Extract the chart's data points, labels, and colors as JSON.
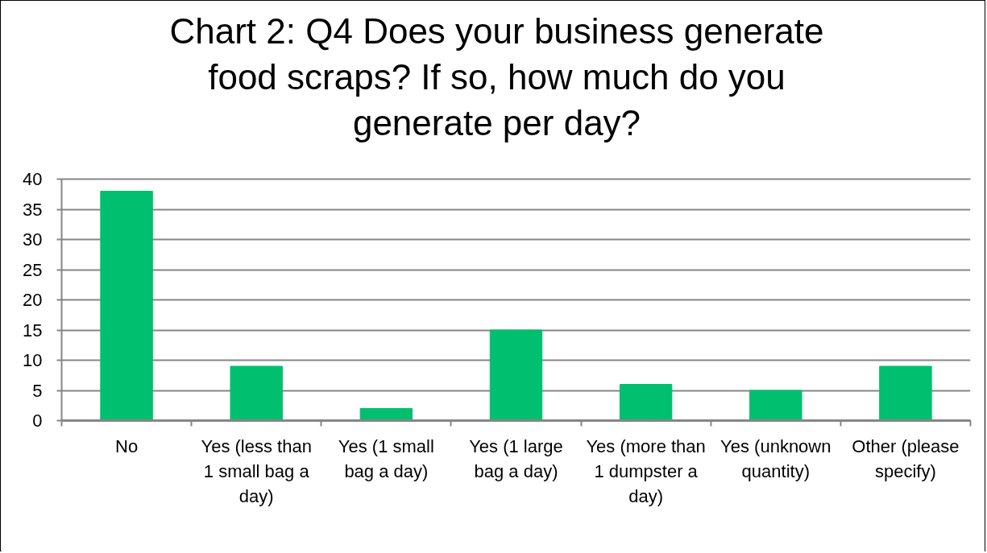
{
  "chart_data": {
    "type": "bar",
    "title": "Chart 2: Q4 Does your business generate food scraps? If so, how much do you generate per day?",
    "categories": [
      "No",
      "Yes (less than 1 small bag a day)",
      "Yes (1 small bag a day)",
      "Yes (1 large bag a day)",
      "Yes (more than 1 dumpster a day)",
      "Yes (unknown quantity)",
      "Other (please specify)"
    ],
    "values": [
      38,
      9,
      2,
      15,
      6,
      5,
      9
    ],
    "color": "#00bf6f",
    "ylim": [
      0,
      40
    ],
    "yticks": [
      0,
      5,
      10,
      15,
      20,
      25,
      30,
      35,
      40
    ],
    "grid": "y"
  }
}
